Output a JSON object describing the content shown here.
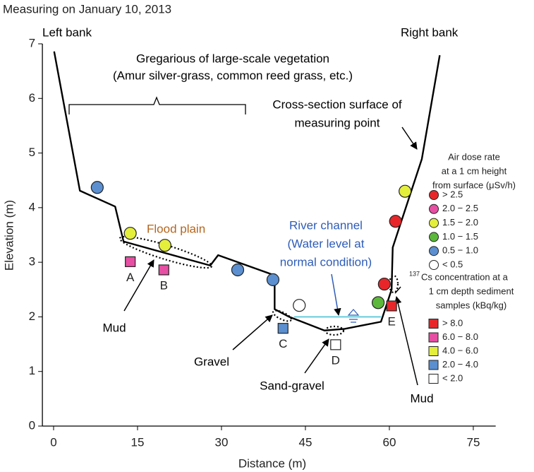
{
  "chart_data": {
    "type": "scatter",
    "title": "Measuring on January 10, 2013",
    "x_label": "Distance (m)",
    "y_label": "Elevation (m)",
    "xlim": [
      -2,
      79
    ],
    "ylim": [
      0,
      7
    ],
    "xticks": [
      0,
      15,
      30,
      45,
      60,
      75
    ],
    "yticks": [
      0,
      1,
      2,
      3,
      4,
      5,
      6,
      7
    ],
    "cross_section": {
      "color": "#000000",
      "x": [
        0.1,
        4.7,
        11,
        12.5,
        28,
        29.4,
        39.5,
        39.5,
        42.1,
        48.4,
        52,
        58.5,
        60.4,
        60.6,
        65.8,
        69
      ],
      "values": [
        6.86,
        4.31,
        4.02,
        3.38,
        2.94,
        3.13,
        2.76,
        2.14,
        2.0,
        1.75,
        1.78,
        1.91,
        2.5,
        3.27,
        4.89,
        6.79
      ]
    },
    "water_level": {
      "color": "#5bc8d8",
      "x": [
        43,
        58.5
      ],
      "values": [
        2.0,
        2.0
      ]
    },
    "legends": [
      {
        "title": [
          "Air dose rate",
          "at a 1 cm height",
          "from surface (μSv/h)"
        ],
        "marker": "circle",
        "series": [
          {
            "name": "> 2.5",
            "color": "#e8262a",
            "x": [
              59.1,
              61.1
            ],
            "values": [
              2.6,
              3.75
            ]
          },
          {
            "name": "2.0 − 2.5",
            "color": "#e64fa3",
            "x": [],
            "values": []
          },
          {
            "name": "1.5 − 2.0",
            "color": "#e4ef3c",
            "x": [
              13.7,
              19.9,
              62.8
            ],
            "values": [
              3.53,
              3.31,
              4.3
            ]
          },
          {
            "name": "1.0 − 1.5",
            "color": "#5cb83a",
            "x": [
              58.0
            ],
            "values": [
              2.26
            ]
          },
          {
            "name": "0.5 − 1.0",
            "color": "#5b8fd0",
            "x": [
              7.8,
              32.9,
              39.2
            ],
            "values": [
              4.37,
              2.86,
              2.68
            ]
          },
          {
            "name": "< 0.5",
            "color": "#ffffff",
            "x": [
              43.9
            ],
            "values": [
              2.21
            ]
          }
        ]
      },
      {
        "superscript": "137",
        "title": [
          "Cs concentration at a",
          "1 cm depth sediment",
          "samples (kBq/kg)"
        ],
        "marker": "square",
        "series": [
          {
            "name": "> 8.0",
            "color": "#e8262a",
            "x": [
              60.4
            ],
            "values": [
              2.2
            ],
            "labels": [
              "E"
            ]
          },
          {
            "name": "6.0 − 8.0",
            "color": "#e64fa3",
            "x": [
              13.7,
              19.7
            ],
            "values": [
              3.01,
              2.86
            ],
            "labels": [
              "A",
              "B"
            ]
          },
          {
            "name": "4.0 − 6.0",
            "color": "#e4ef3c",
            "x": [],
            "values": [],
            "labels": []
          },
          {
            "name": "2.0 − 4.0",
            "color": "#5b8fd0",
            "x": [
              41.0
            ],
            "values": [
              1.79
            ],
            "labels": [
              "C"
            ]
          },
          {
            "name": "< 2.0",
            "color": "#ffffff",
            "x": [
              50.4
            ],
            "values": [
              1.49
            ],
            "labels": [
              "D"
            ]
          }
        ]
      }
    ],
    "annotations": [
      {
        "lines": [
          "Left bank"
        ],
        "color": "#000000"
      },
      {
        "lines": [
          "Right bank"
        ],
        "color": "#000000"
      },
      {
        "lines": [
          "Gregarious of large-scale vegetation",
          "(Amur silver-grass, common reed grass, etc.)"
        ],
        "color": "#000000"
      },
      {
        "lines": [
          "Cross-section surface of",
          "measuring point"
        ],
        "color": "#000000"
      },
      {
        "lines": [
          "Flood plain"
        ],
        "color": "#b5651d"
      },
      {
        "lines": [
          "River channel",
          "(Water level at",
          "normal condition)"
        ],
        "color": "#2e5cb8"
      },
      {
        "lines": [
          "Mud"
        ],
        "color": "#000000"
      },
      {
        "lines": [
          "Gravel"
        ],
        "color": "#000000"
      },
      {
        "lines": [
          "Sand-gravel"
        ],
        "color": "#000000"
      },
      {
        "lines": [
          "Mud"
        ],
        "color": "#000000"
      }
    ]
  }
}
